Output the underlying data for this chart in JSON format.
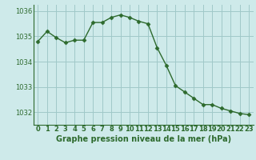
{
  "x": [
    0,
    1,
    2,
    3,
    4,
    5,
    6,
    7,
    8,
    9,
    10,
    11,
    12,
    13,
    14,
    15,
    16,
    17,
    18,
    19,
    20,
    21,
    22,
    23
  ],
  "y": [
    1034.8,
    1035.2,
    1034.95,
    1034.75,
    1034.85,
    1034.85,
    1035.55,
    1035.55,
    1035.75,
    1035.85,
    1035.75,
    1035.6,
    1035.5,
    1034.55,
    1033.85,
    1033.05,
    1032.8,
    1032.55,
    1032.3,
    1032.3,
    1032.15,
    1032.05,
    1031.95,
    1031.9
  ],
  "line_color": "#2d6a2d",
  "marker": "D",
  "marker_size": 2.5,
  "bg_color": "#ceeaea",
  "grid_color": "#a0c8c8",
  "title": "Graphe pression niveau de la mer (hPa)",
  "ylim": [
    1031.5,
    1036.25
  ],
  "xlim": [
    -0.5,
    23.5
  ],
  "yticks": [
    1032,
    1033,
    1034,
    1035,
    1036
  ],
  "xticks": [
    0,
    1,
    2,
    3,
    4,
    5,
    6,
    7,
    8,
    9,
    10,
    11,
    12,
    13,
    14,
    15,
    16,
    17,
    18,
    19,
    20,
    21,
    22,
    23
  ],
  "xtick_labels": [
    "0",
    "1",
    "2",
    "3",
    "4",
    "5",
    "6",
    "7",
    "8",
    "9",
    "10",
    "11",
    "12",
    "13",
    "14",
    "15",
    "16",
    "17",
    "18",
    "19",
    "20",
    "21",
    "22",
    "23"
  ],
  "title_color": "#2d6a2d",
  "tick_color": "#2d6a2d",
  "axis_color": "#2d6a2d",
  "title_fontsize": 7.0,
  "tick_fontsize": 6.0
}
